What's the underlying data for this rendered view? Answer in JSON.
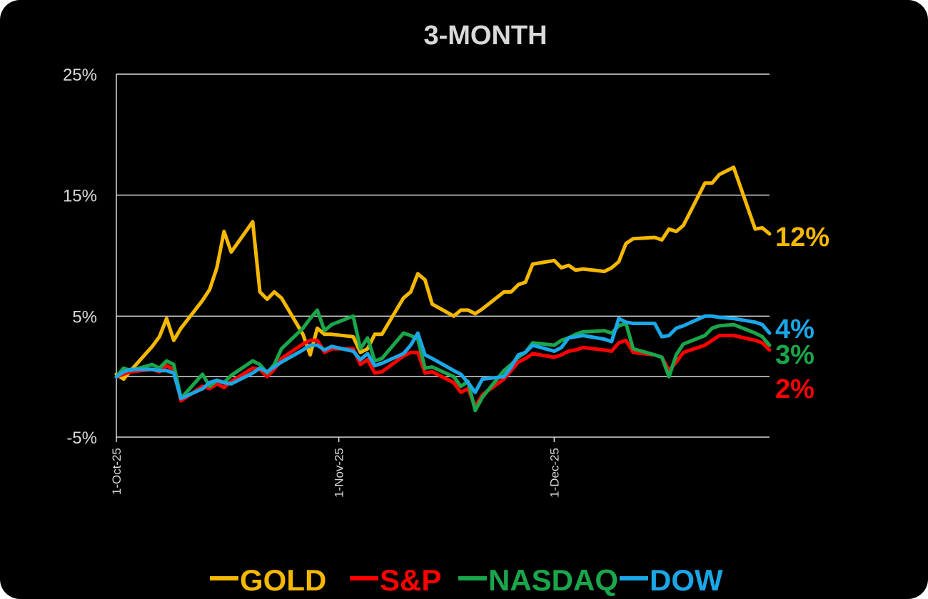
{
  "chart_data": {
    "type": "line",
    "title": "3-MONTH",
    "xlabel": "",
    "ylabel": "",
    "ylim": [
      -5,
      25
    ],
    "yticks": [
      "25%",
      "15%",
      "5%",
      "-5%"
    ],
    "ytick_values": [
      25,
      15,
      5,
      -5
    ],
    "gridlines": [
      25,
      15,
      5,
      0
    ],
    "xlim": [
      "2025-10-01",
      "2025-12-31"
    ],
    "xticks": [
      {
        "label": "1-Oct-25",
        "date": "2025-10-01"
      },
      {
        "label": "1-Nov-25",
        "date": "2025-11-01"
      },
      {
        "label": "1-Dec-25",
        "date": "2025-12-01"
      }
    ],
    "legend_position": "bottom",
    "series": [
      {
        "name": "GOLD",
        "color": "#f5b800",
        "end_label": "12%",
        "points": [
          [
            "2025-10-01",
            0.2
          ],
          [
            "2025-10-02",
            -0.2
          ],
          [
            "2025-10-03",
            0.5
          ],
          [
            "2025-10-06",
            2.5
          ],
          [
            "2025-10-07",
            3.3
          ],
          [
            "2025-10-08",
            4.8
          ],
          [
            "2025-10-09",
            3.0
          ],
          [
            "2025-10-10",
            4.0
          ],
          [
            "2025-10-13",
            6.3
          ],
          [
            "2025-10-14",
            7.2
          ],
          [
            "2025-10-15",
            9.0
          ],
          [
            "2025-10-16",
            12.0
          ],
          [
            "2025-10-17",
            10.3
          ],
          [
            "2025-10-20",
            12.8
          ],
          [
            "2025-10-21",
            7.0
          ],
          [
            "2025-10-22",
            6.4
          ],
          [
            "2025-10-23",
            7.0
          ],
          [
            "2025-10-24",
            6.5
          ],
          [
            "2025-10-27",
            3.5
          ],
          [
            "2025-10-28",
            1.8
          ],
          [
            "2025-10-29",
            4.0
          ],
          [
            "2025-10-30",
            3.5
          ],
          [
            "2025-10-31",
            3.5
          ],
          [
            "2025-11-03",
            3.3
          ],
          [
            "2025-11-04",
            2.0
          ],
          [
            "2025-11-05",
            2.3
          ],
          [
            "2025-11-06",
            3.5
          ],
          [
            "2025-11-07",
            3.5
          ],
          [
            "2025-11-10",
            6.5
          ],
          [
            "2025-11-11",
            7.0
          ],
          [
            "2025-11-12",
            8.5
          ],
          [
            "2025-11-13",
            8.0
          ],
          [
            "2025-11-14",
            6.0
          ],
          [
            "2025-11-17",
            5.0
          ],
          [
            "2025-11-18",
            5.5
          ],
          [
            "2025-11-19",
            5.5
          ],
          [
            "2025-11-20",
            5.2
          ],
          [
            "2025-11-21",
            5.6
          ],
          [
            "2025-11-24",
            7.0
          ],
          [
            "2025-11-25",
            7.0
          ],
          [
            "2025-11-26",
            7.6
          ],
          [
            "2025-11-27",
            7.8
          ],
          [
            "2025-11-28",
            9.3
          ],
          [
            "2025-12-01",
            9.6
          ],
          [
            "2025-12-02",
            9.0
          ],
          [
            "2025-12-03",
            9.2
          ],
          [
            "2025-12-04",
            8.8
          ],
          [
            "2025-12-05",
            8.9
          ],
          [
            "2025-12-08",
            8.7
          ],
          [
            "2025-12-09",
            9.0
          ],
          [
            "2025-12-10",
            9.5
          ],
          [
            "2025-12-11",
            11.0
          ],
          [
            "2025-12-12",
            11.4
          ],
          [
            "2025-12-15",
            11.5
          ],
          [
            "2025-12-16",
            11.3
          ],
          [
            "2025-12-17",
            12.2
          ],
          [
            "2025-12-18",
            12.0
          ],
          [
            "2025-12-19",
            12.5
          ],
          [
            "2025-12-22",
            16.0
          ],
          [
            "2025-12-23",
            16.0
          ],
          [
            "2025-12-24",
            16.7
          ],
          [
            "2025-12-26",
            17.3
          ],
          [
            "2025-12-29",
            12.2
          ],
          [
            "2025-12-30",
            12.3
          ],
          [
            "2025-12-31",
            11.8
          ]
        ]
      },
      {
        "name": "S&P",
        "color": "#ff0000",
        "end_label": "2%",
        "points": [
          [
            "2025-10-01",
            0.0
          ],
          [
            "2025-10-02",
            0.2
          ],
          [
            "2025-10-03",
            0.4
          ],
          [
            "2025-10-06",
            0.6
          ],
          [
            "2025-10-07",
            0.4
          ],
          [
            "2025-10-08",
            0.9
          ],
          [
            "2025-10-09",
            0.6
          ],
          [
            "2025-10-10",
            -2.0
          ],
          [
            "2025-10-13",
            -0.8
          ],
          [
            "2025-10-14",
            -1.0
          ],
          [
            "2025-10-15",
            -0.6
          ],
          [
            "2025-10-16",
            -0.9
          ],
          [
            "2025-10-17",
            -0.4
          ],
          [
            "2025-10-20",
            0.7
          ],
          [
            "2025-10-21",
            0.6
          ],
          [
            "2025-10-22",
            0.0
          ],
          [
            "2025-10-23",
            0.6
          ],
          [
            "2025-10-24",
            1.5
          ],
          [
            "2025-10-27",
            2.7
          ],
          [
            "2025-10-28",
            3.0
          ],
          [
            "2025-10-29",
            3.0
          ],
          [
            "2025-10-30",
            2.0
          ],
          [
            "2025-10-31",
            2.3
          ],
          [
            "2025-11-03",
            2.3
          ],
          [
            "2025-11-04",
            1.0
          ],
          [
            "2025-11-05",
            1.4
          ],
          [
            "2025-11-06",
            0.3
          ],
          [
            "2025-11-07",
            0.4
          ],
          [
            "2025-11-10",
            1.7
          ],
          [
            "2025-11-11",
            2.0
          ],
          [
            "2025-11-12",
            2.0
          ],
          [
            "2025-11-13",
            0.3
          ],
          [
            "2025-11-14",
            0.4
          ],
          [
            "2025-11-17",
            -0.5
          ],
          [
            "2025-11-18",
            -1.3
          ],
          [
            "2025-11-19",
            -1.0
          ],
          [
            "2025-11-20",
            -2.5
          ],
          [
            "2025-11-21",
            -1.5
          ],
          [
            "2025-11-24",
            -0.2
          ],
          [
            "2025-11-25",
            0.5
          ],
          [
            "2025-11-26",
            1.2
          ],
          [
            "2025-11-27",
            1.5
          ],
          [
            "2025-11-28",
            1.9
          ],
          [
            "2025-12-01",
            1.6
          ],
          [
            "2025-12-02",
            1.8
          ],
          [
            "2025-12-03",
            2.1
          ],
          [
            "2025-12-04",
            2.2
          ],
          [
            "2025-12-05",
            2.4
          ],
          [
            "2025-12-08",
            2.2
          ],
          [
            "2025-12-09",
            2.1
          ],
          [
            "2025-12-10",
            2.8
          ],
          [
            "2025-12-11",
            3.0
          ],
          [
            "2025-12-12",
            2.0
          ],
          [
            "2025-12-15",
            1.8
          ],
          [
            "2025-12-16",
            1.6
          ],
          [
            "2025-12-17",
            0.5
          ],
          [
            "2025-12-18",
            1.2
          ],
          [
            "2025-12-19",
            2.0
          ],
          [
            "2025-12-22",
            2.6
          ],
          [
            "2025-12-23",
            3.0
          ],
          [
            "2025-12-24",
            3.4
          ],
          [
            "2025-12-26",
            3.4
          ],
          [
            "2025-12-29",
            3.0
          ],
          [
            "2025-12-30",
            2.8
          ],
          [
            "2025-12-31",
            2.2
          ]
        ]
      },
      {
        "name": "NASDAQ",
        "color": "#1aa64b",
        "end_label": "3%",
        "points": [
          [
            "2025-10-01",
            0.0
          ],
          [
            "2025-10-02",
            0.7
          ],
          [
            "2025-10-03",
            0.5
          ],
          [
            "2025-10-06",
            1.0
          ],
          [
            "2025-10-07",
            0.7
          ],
          [
            "2025-10-08",
            1.3
          ],
          [
            "2025-10-09",
            1.0
          ],
          [
            "2025-10-10",
            -1.8
          ],
          [
            "2025-10-13",
            0.2
          ],
          [
            "2025-10-14",
            -0.8
          ],
          [
            "2025-10-15",
            -0.3
          ],
          [
            "2025-10-16",
            -0.5
          ],
          [
            "2025-10-17",
            0.1
          ],
          [
            "2025-10-20",
            1.3
          ],
          [
            "2025-10-21",
            1.0
          ],
          [
            "2025-10-22",
            0.3
          ],
          [
            "2025-10-23",
            1.0
          ],
          [
            "2025-10-24",
            2.3
          ],
          [
            "2025-10-27",
            4.0
          ],
          [
            "2025-10-28",
            4.8
          ],
          [
            "2025-10-29",
            5.5
          ],
          [
            "2025-10-30",
            3.8
          ],
          [
            "2025-10-31",
            4.3
          ],
          [
            "2025-11-03",
            5.0
          ],
          [
            "2025-11-04",
            2.3
          ],
          [
            "2025-11-05",
            3.2
          ],
          [
            "2025-11-06",
            1.3
          ],
          [
            "2025-11-07",
            1.5
          ],
          [
            "2025-11-10",
            3.6
          ],
          [
            "2025-11-11",
            3.4
          ],
          [
            "2025-11-12",
            3.1
          ],
          [
            "2025-11-13",
            0.7
          ],
          [
            "2025-11-14",
            0.8
          ],
          [
            "2025-11-17",
            0.0
          ],
          [
            "2025-11-18",
            -0.8
          ],
          [
            "2025-11-19",
            -0.4
          ],
          [
            "2025-11-20",
            -2.8
          ],
          [
            "2025-11-21",
            -1.7
          ],
          [
            "2025-11-24",
            0.5
          ],
          [
            "2025-11-25",
            1.0
          ],
          [
            "2025-11-26",
            1.6
          ],
          [
            "2025-11-27",
            2.0
          ],
          [
            "2025-11-28",
            2.8
          ],
          [
            "2025-12-01",
            2.6
          ],
          [
            "2025-12-02",
            3.0
          ],
          [
            "2025-12-03",
            3.2
          ],
          [
            "2025-12-04",
            3.5
          ],
          [
            "2025-12-05",
            3.7
          ],
          [
            "2025-12-08",
            3.8
          ],
          [
            "2025-12-09",
            3.6
          ],
          [
            "2025-12-10",
            4.2
          ],
          [
            "2025-12-11",
            4.4
          ],
          [
            "2025-12-12",
            2.3
          ],
          [
            "2025-12-15",
            1.8
          ],
          [
            "2025-12-16",
            1.6
          ],
          [
            "2025-12-17",
            0.0
          ],
          [
            "2025-12-18",
            1.8
          ],
          [
            "2025-12-19",
            2.7
          ],
          [
            "2025-12-22",
            3.4
          ],
          [
            "2025-12-23",
            4.0
          ],
          [
            "2025-12-24",
            4.2
          ],
          [
            "2025-12-26",
            4.3
          ],
          [
            "2025-12-29",
            3.6
          ],
          [
            "2025-12-30",
            3.3
          ],
          [
            "2025-12-31",
            2.6
          ]
        ]
      },
      {
        "name": "DOW",
        "color": "#1aa7e8",
        "end_label": "4%",
        "points": [
          [
            "2025-10-01",
            0.0
          ],
          [
            "2025-10-02",
            0.4
          ],
          [
            "2025-10-03",
            0.6
          ],
          [
            "2025-10-06",
            0.6
          ],
          [
            "2025-10-07",
            0.5
          ],
          [
            "2025-10-08",
            0.5
          ],
          [
            "2025-10-09",
            0.3
          ],
          [
            "2025-10-10",
            -1.8
          ],
          [
            "2025-10-13",
            -1.0
          ],
          [
            "2025-10-14",
            -0.5
          ],
          [
            "2025-10-15",
            -0.3
          ],
          [
            "2025-10-16",
            -0.5
          ],
          [
            "2025-10-17",
            -0.6
          ],
          [
            "2025-10-20",
            0.3
          ],
          [
            "2025-10-21",
            0.7
          ],
          [
            "2025-10-22",
            0.4
          ],
          [
            "2025-10-23",
            0.8
          ],
          [
            "2025-10-24",
            1.2
          ],
          [
            "2025-10-27",
            2.2
          ],
          [
            "2025-10-28",
            2.6
          ],
          [
            "2025-10-29",
            2.6
          ],
          [
            "2025-10-30",
            2.2
          ],
          [
            "2025-10-31",
            2.5
          ],
          [
            "2025-11-03",
            2.1
          ],
          [
            "2025-11-04",
            1.4
          ],
          [
            "2025-11-05",
            1.9
          ],
          [
            "2025-11-06",
            0.9
          ],
          [
            "2025-11-07",
            1.1
          ],
          [
            "2025-11-10",
            1.9
          ],
          [
            "2025-11-11",
            2.6
          ],
          [
            "2025-11-12",
            3.6
          ],
          [
            "2025-11-13",
            1.8
          ],
          [
            "2025-11-14",
            1.5
          ],
          [
            "2025-11-17",
            0.5
          ],
          [
            "2025-11-18",
            0.2
          ],
          [
            "2025-11-19",
            -0.5
          ],
          [
            "2025-11-20",
            -1.3
          ],
          [
            "2025-11-21",
            -0.2
          ],
          [
            "2025-11-24",
            0.0
          ],
          [
            "2025-11-25",
            0.8
          ],
          [
            "2025-11-26",
            1.8
          ],
          [
            "2025-11-27",
            2.0
          ],
          [
            "2025-11-28",
            2.6
          ],
          [
            "2025-12-01",
            2.1
          ],
          [
            "2025-12-02",
            2.4
          ],
          [
            "2025-12-03",
            3.2
          ],
          [
            "2025-12-04",
            3.3
          ],
          [
            "2025-12-05",
            3.4
          ],
          [
            "2025-12-08",
            3.1
          ],
          [
            "2025-12-09",
            2.9
          ],
          [
            "2025-12-10",
            4.8
          ],
          [
            "2025-12-11",
            4.5
          ],
          [
            "2025-12-12",
            4.4
          ],
          [
            "2025-12-15",
            4.4
          ],
          [
            "2025-12-16",
            3.3
          ],
          [
            "2025-12-17",
            3.4
          ],
          [
            "2025-12-18",
            4.0
          ],
          [
            "2025-12-19",
            4.2
          ],
          [
            "2025-12-22",
            5.0
          ],
          [
            "2025-12-23",
            5.0
          ],
          [
            "2025-12-24",
            4.9
          ],
          [
            "2025-12-26",
            4.8
          ],
          [
            "2025-12-29",
            4.5
          ],
          [
            "2025-12-30",
            4.3
          ],
          [
            "2025-12-31",
            3.6
          ]
        ]
      }
    ]
  }
}
